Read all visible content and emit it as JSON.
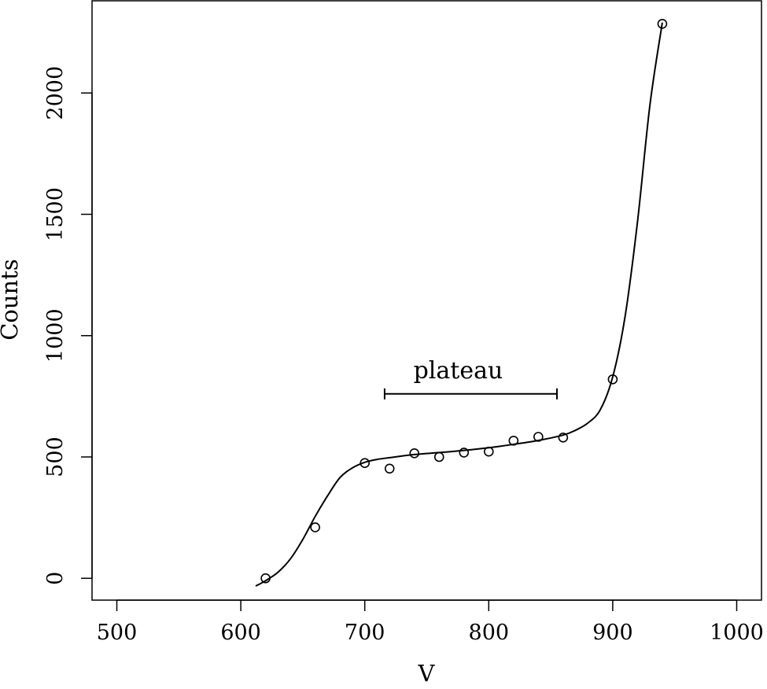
{
  "chart_data": {
    "type": "scatter",
    "title": "",
    "xlabel": "V",
    "ylabel": "Counts",
    "xlim": [
      480,
      1020
    ],
    "ylim": [
      -90,
      2380
    ],
    "x_ticks": [
      500,
      600,
      700,
      800,
      900,
      1000
    ],
    "y_ticks": [
      0,
      500,
      1000,
      1500,
      2000
    ],
    "x_tick_labels": [
      "500",
      "600",
      "700",
      "800",
      "900",
      "1000"
    ],
    "y_tick_labels": [
      "0",
      "500",
      "1000",
      "1500",
      "2000"
    ],
    "grid": false,
    "legend": "none",
    "series": [
      {
        "type": "scatter",
        "marker": "open-circle",
        "x": [
          620,
          660,
          700,
          720,
          740,
          760,
          780,
          800,
          820,
          840,
          860,
          900,
          940
        ],
        "y": [
          0,
          210,
          475,
          452,
          515,
          500,
          518,
          522,
          567,
          583,
          580,
          820,
          2285
        ]
      },
      {
        "type": "line",
        "x": [
          612,
          620,
          630,
          640,
          650,
          660,
          670,
          680,
          690,
          700,
          710,
          720,
          740,
          760,
          780,
          800,
          820,
          840,
          860,
          870,
          880,
          890,
          900,
          910,
          920,
          930,
          940
        ],
        "y": [
          -32,
          -10,
          25,
          80,
          160,
          255,
          340,
          415,
          455,
          478,
          490,
          497,
          510,
          518,
          527,
          538,
          552,
          568,
          590,
          610,
          640,
          695,
          830,
          1080,
          1470,
          1950,
          2290
        ]
      }
    ],
    "annotations": [
      {
        "text": "plateau",
        "type": "range-bracket",
        "x_range": [
          716,
          855
        ],
        "y": 760
      }
    ]
  }
}
